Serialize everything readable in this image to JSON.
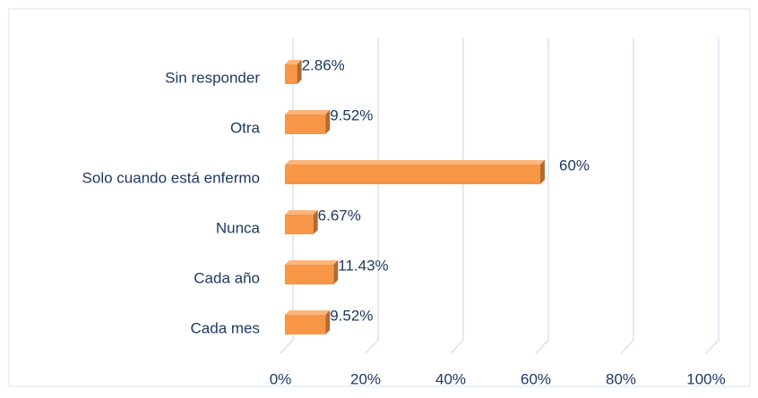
{
  "chart_data": {
    "type": "bar",
    "orientation": "horizontal",
    "categories": [
      "Cada mes",
      "Cada año",
      "Nunca",
      "Solo cuando está enfermo",
      "Otra",
      "Sin responder"
    ],
    "values": [
      9.52,
      11.43,
      6.67,
      60,
      9.52,
      2.86
    ],
    "value_labels": [
      "9.52%",
      "11.43%",
      "6.67%",
      "60%",
      "9.52%",
      "2.86%"
    ],
    "color": "#f79646",
    "xlim": [
      0,
      100
    ],
    "xticks": [
      {
        "value": 0,
        "label": "0%"
      },
      {
        "value": 20,
        "label": "20%"
      },
      {
        "value": 40,
        "label": "40%"
      },
      {
        "value": 60,
        "label": "60%"
      },
      {
        "value": 80,
        "label": "80%"
      },
      {
        "value": 100,
        "label": "100%"
      }
    ],
    "grid": true
  }
}
